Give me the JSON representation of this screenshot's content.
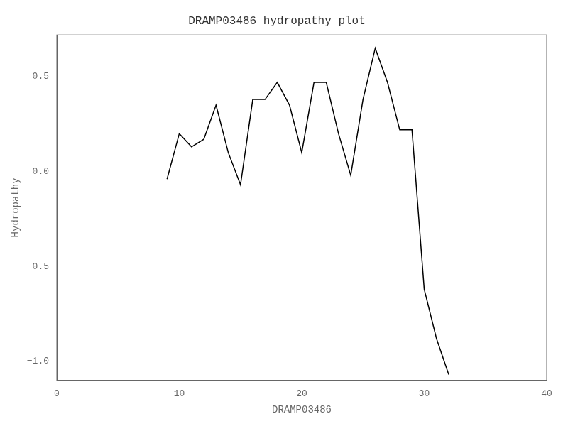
{
  "chart_data": {
    "type": "line",
    "title": "DRAMP03486 hydropathy plot",
    "xlabel": "DRAMP03486",
    "ylabel": "Hydropathy",
    "x": [
      9,
      10,
      11,
      12,
      13,
      14,
      15,
      16,
      17,
      18,
      19,
      20,
      21,
      22,
      23,
      24,
      25,
      26,
      27,
      28,
      29,
      30,
      31,
      32
    ],
    "values": [
      -0.04,
      0.2,
      0.13,
      0.17,
      0.35,
      0.1,
      -0.07,
      0.38,
      0.38,
      0.47,
      0.35,
      0.1,
      0.47,
      0.47,
      0.2,
      -0.02,
      0.38,
      0.65,
      0.47,
      0.22,
      0.22,
      -0.62,
      -0.88,
      -1.07
    ],
    "color": "#000000",
    "xlim": [
      0,
      40
    ],
    "ylim": [
      -1.1,
      0.72
    ],
    "xticks": [
      0,
      10,
      20,
      30,
      40
    ],
    "yticks": [
      {
        "value": -1.0,
        "label": "−1.0"
      },
      {
        "value": -0.5,
        "label": "−0.5"
      },
      {
        "value": 0.0,
        "label": "0.0"
      },
      0.5
    ],
    "grid": false
  }
}
